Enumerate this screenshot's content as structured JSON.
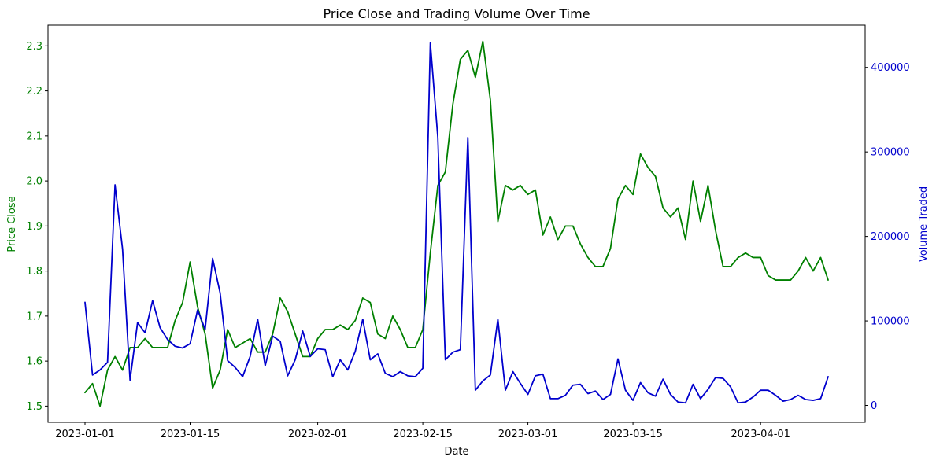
{
  "chart_data": {
    "type": "line",
    "title": "Price Close and Trading Volume Over Time",
    "xlabel": "Date",
    "ylabel_left": "Price Close",
    "ylabel_right": "Volume Traded",
    "x_start": "2023-01-01",
    "x_end": "2023-04-10",
    "x_ticks": [
      "2023-01-01",
      "2023-01-15",
      "2023-02-01",
      "2023-02-15",
      "2023-03-01",
      "2023-03-15",
      "2023-04-01"
    ],
    "ylim_left": [
      1.464,
      2.346
    ],
    "yticks_left": [
      "1.5",
      "1.6",
      "1.7",
      "1.8",
      "1.9",
      "2.0",
      "2.1",
      "2.2",
      "2.3"
    ],
    "ylim_right": [
      -20000,
      450000
    ],
    "yticks_right": [
      "0",
      "100000",
      "200000",
      "300000",
      "400000"
    ],
    "colors": {
      "left": "#008000",
      "right": "#0000cd",
      "axis": "#000000"
    },
    "grid": false,
    "series": [
      {
        "axis": "left",
        "values": [
          1.53,
          1.55,
          1.5,
          1.58,
          1.61,
          1.58,
          1.63,
          1.63,
          1.65,
          1.63,
          1.63,
          1.63,
          1.69,
          1.73,
          1.82,
          1.72,
          1.66,
          1.54,
          1.58,
          1.67,
          1.63,
          1.64,
          1.65,
          1.62,
          1.62,
          1.66,
          1.74,
          1.71,
          1.66,
          1.61,
          1.61,
          1.65,
          1.67,
          1.67,
          1.68,
          1.67,
          1.69,
          1.74,
          1.73,
          1.66,
          1.65,
          1.7,
          1.67,
          1.63,
          1.63,
          1.67,
          1.84,
          1.99,
          2.02,
          2.17,
          2.27,
          2.29,
          2.23,
          2.31,
          2.18,
          1.91,
          1.99,
          1.98,
          1.99,
          1.97,
          1.98,
          1.88,
          1.92,
          1.87,
          1.9,
          1.9,
          1.86,
          1.83,
          1.81,
          1.81,
          1.85,
          1.96,
          1.99,
          1.97,
          2.06,
          2.03,
          2.01,
          1.94,
          1.92,
          1.94,
          1.87,
          2.0,
          1.91,
          1.99,
          1.89,
          1.81,
          1.81,
          1.83,
          1.84,
          1.83,
          1.83,
          1.79,
          1.78,
          1.78,
          1.78,
          1.8,
          1.83,
          1.8,
          1.83,
          1.78
        ]
      },
      {
        "axis": "right",
        "values": [
          122000,
          36000,
          42000,
          51000,
          261000,
          185000,
          30000,
          98000,
          86000,
          124000,
          92000,
          78000,
          70000,
          68000,
          73000,
          113000,
          90000,
          174000,
          133000,
          53000,
          45000,
          34000,
          58000,
          102000,
          47000,
          82000,
          76000,
          35000,
          54000,
          88000,
          58000,
          67000,
          66000,
          34000,
          54000,
          42000,
          64000,
          102000,
          54000,
          61000,
          38000,
          34000,
          40000,
          35000,
          34000,
          44000,
          429000,
          317000,
          54000,
          63000,
          66000,
          317000,
          18000,
          29000,
          36000,
          102000,
          18000,
          40000,
          26000,
          13000,
          35000,
          37000,
          8000,
          8000,
          12000,
          24000,
          25000,
          14000,
          17000,
          7000,
          13000,
          55000,
          18000,
          6000,
          27000,
          15000,
          11000,
          31000,
          13000,
          4000,
          3000,
          25000,
          8000,
          19000,
          33000,
          32000,
          22000,
          3000,
          4000,
          10000,
          18000,
          18000,
          12000,
          5000,
          7000,
          12000,
          7000,
          6000,
          8000,
          34000
        ]
      }
    ]
  }
}
